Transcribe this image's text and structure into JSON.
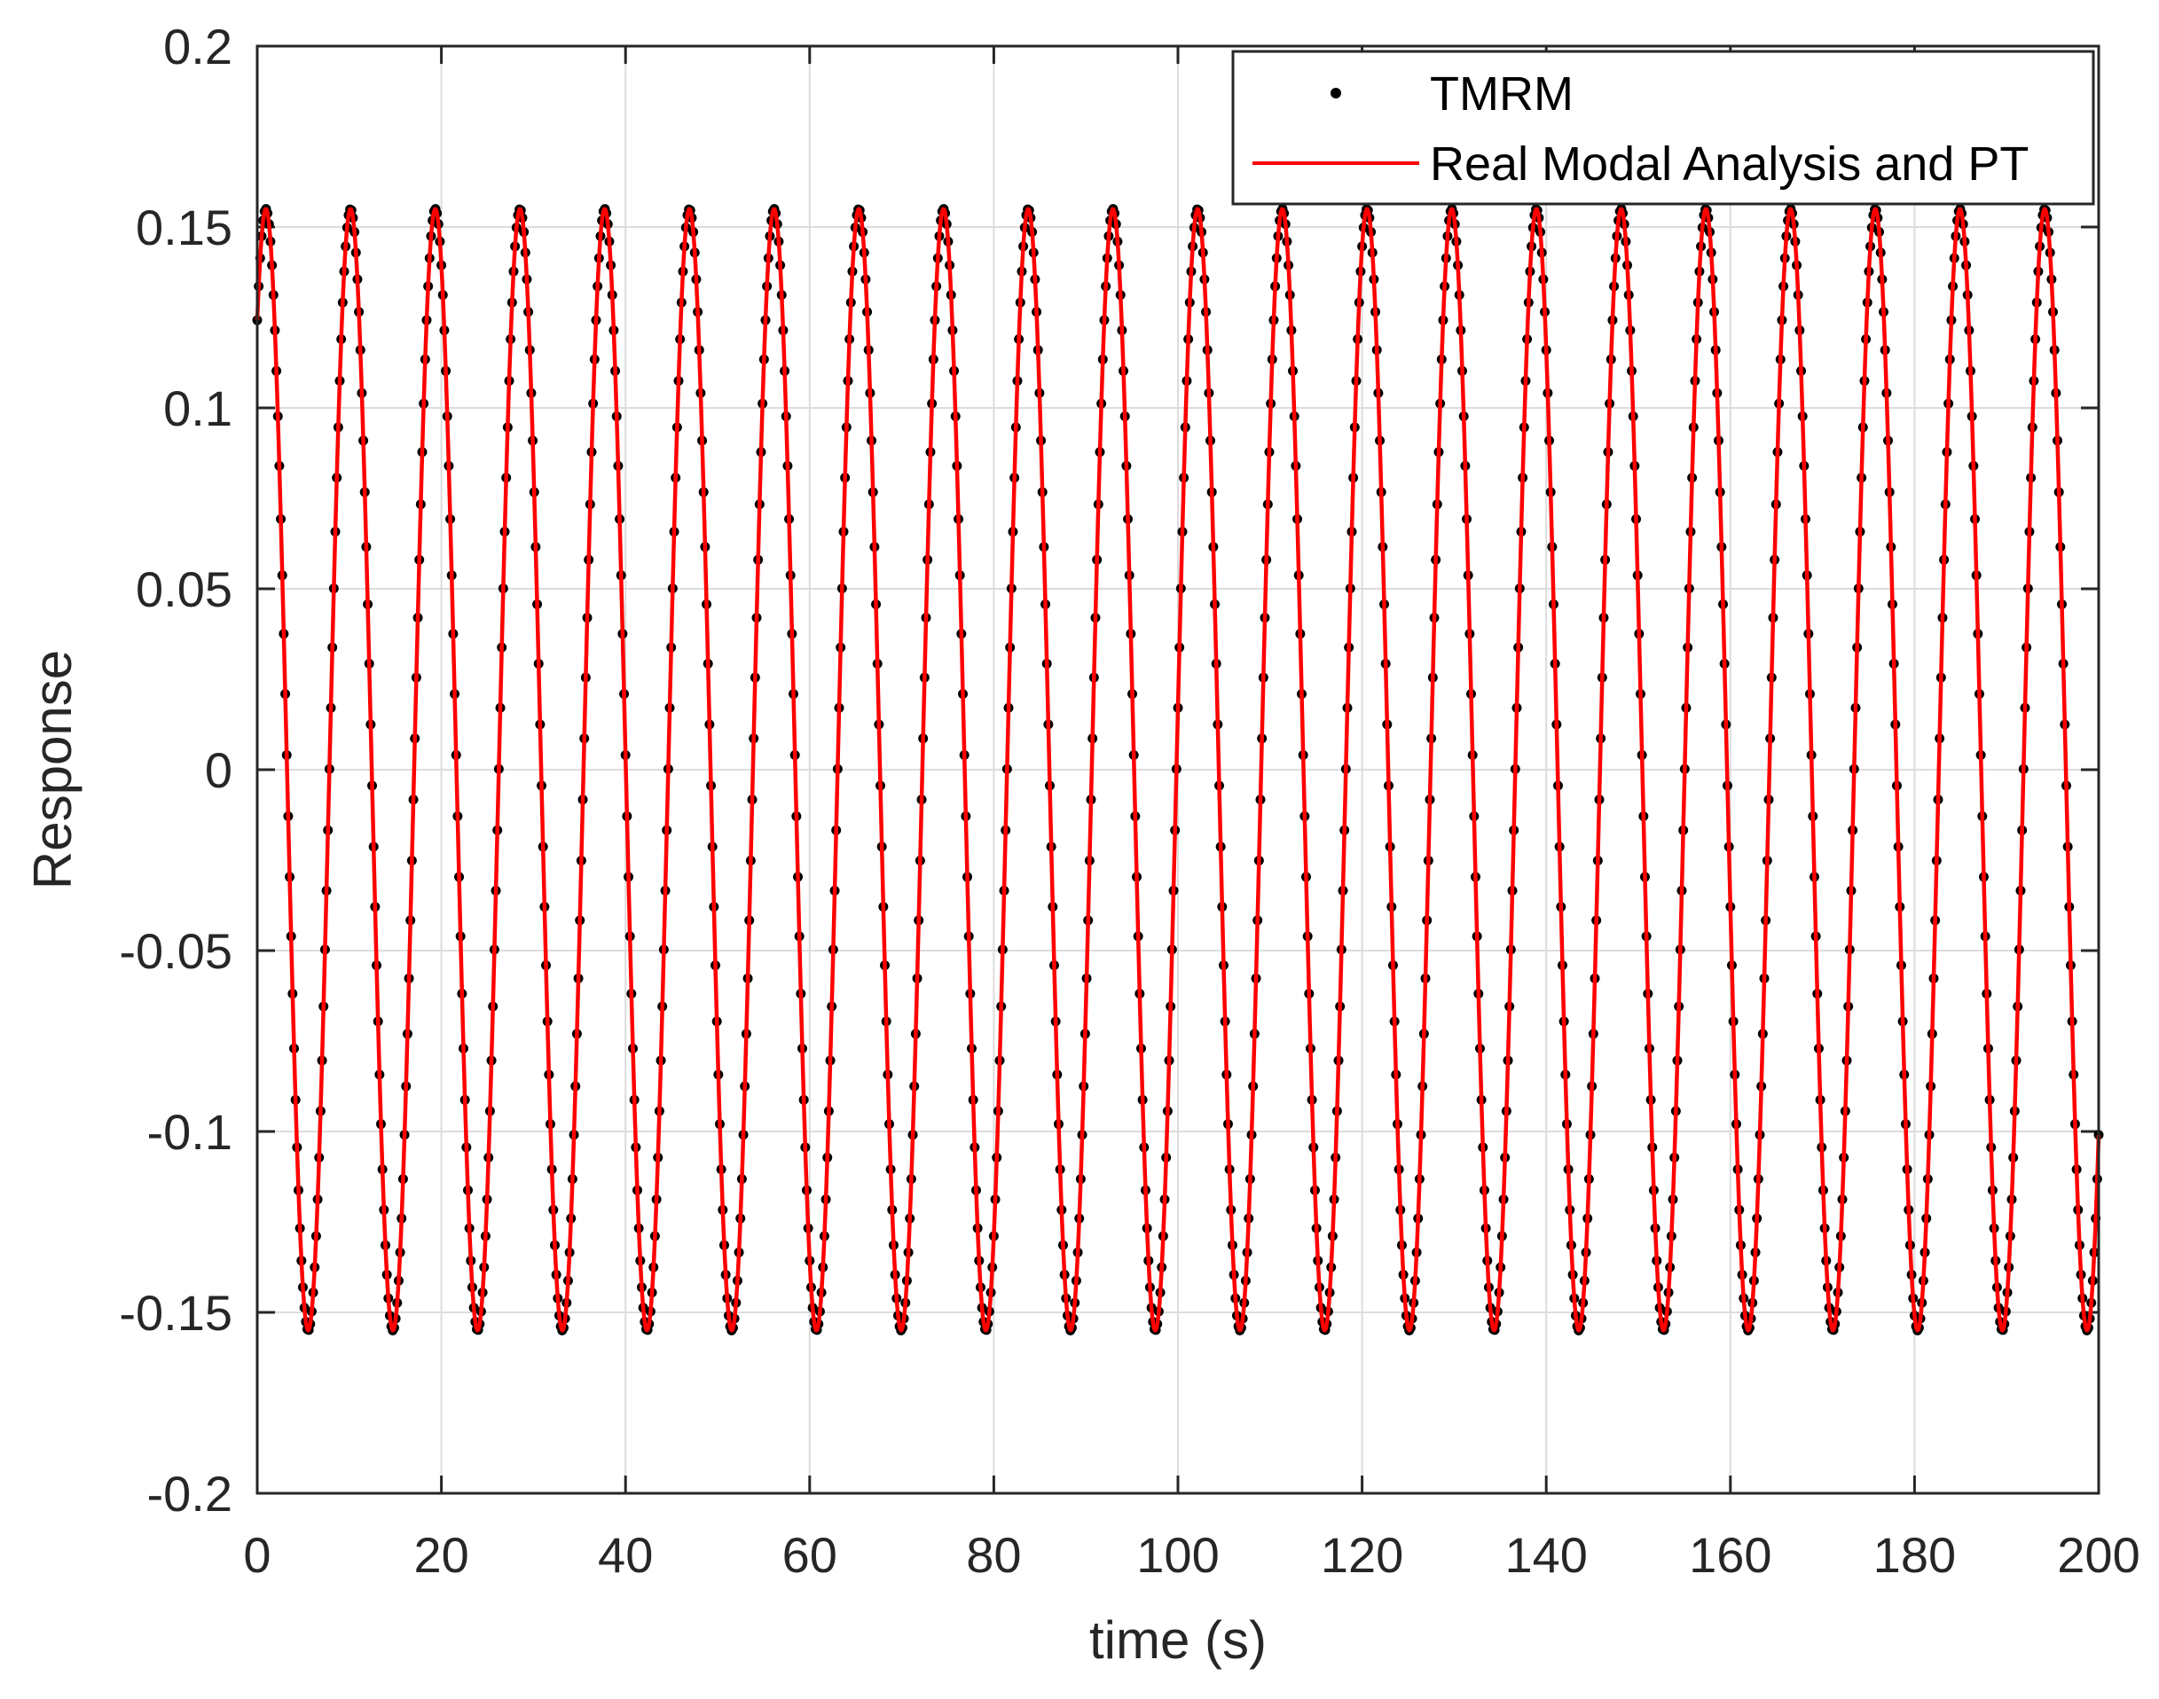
{
  "chart_data": {
    "type": "line",
    "title": "",
    "xlabel": "time (s)",
    "ylabel": "Response",
    "xlim": [
      0,
      200
    ],
    "ylim": [
      -0.2,
      0.2
    ],
    "x_ticks": [
      0,
      20,
      40,
      60,
      80,
      100,
      120,
      140,
      160,
      180,
      200
    ],
    "x_tick_labels": [
      "0",
      "20",
      "40",
      "60",
      "80",
      "100",
      "120",
      "140",
      "160",
      "180",
      "200"
    ],
    "y_ticks": [
      -0.2,
      -0.15,
      -0.1,
      -0.05,
      0,
      0.05,
      0.1,
      0.15,
      0.2
    ],
    "y_tick_labels": [
      "-0.2",
      "-0.15",
      "-0.1",
      "-0.05",
      "0",
      "0.05",
      "0.1",
      "0.15",
      "0.2"
    ],
    "grid": true,
    "legend_position": "top-right",
    "series": [
      {
        "name": "TMRM",
        "style": "markers",
        "color": "#000000",
        "signal": {
          "amplitude": 0.155,
          "period": 9.2,
          "phase": 0.93,
          "t_start": 0,
          "t_end": 200,
          "dt": 0.16
        }
      },
      {
        "name": "Real Modal Analysis and PT",
        "style": "line",
        "color": "#ff0000",
        "signal": {
          "amplitude": 0.155,
          "period": 9.2,
          "phase": 0.93,
          "t_start": 0,
          "t_end": 200,
          "dt": 0.1
        }
      }
    ]
  }
}
